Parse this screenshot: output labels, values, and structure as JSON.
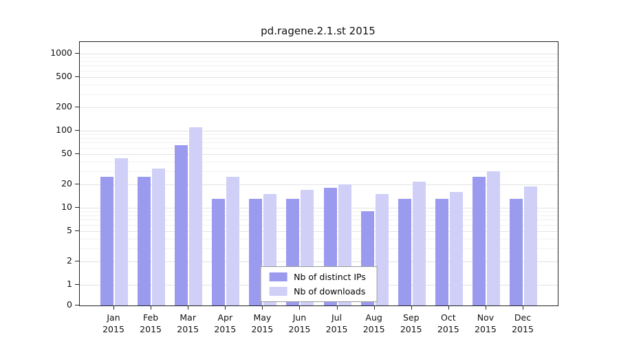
{
  "title": "pd.ragene.2.1.st 2015",
  "chart_data": {
    "type": "bar",
    "title": "pd.ragene.2.1.st 2015",
    "categories": [
      "Jan",
      "Feb",
      "Mar",
      "Apr",
      "May",
      "Jun",
      "Jul",
      "Aug",
      "Sep",
      "Oct",
      "Nov",
      "Dec"
    ],
    "year": "2015",
    "series": [
      {
        "name": "Nb of distinct IPs",
        "color": "#9a9aee",
        "values": [
          25,
          25,
          65,
          13,
          13,
          13,
          18,
          9,
          13,
          13,
          25,
          13
        ]
      },
      {
        "name": "Nb of downloads",
        "color": "#cfcff8",
        "values": [
          44,
          32,
          110,
          25,
          15,
          17,
          20,
          15,
          22,
          16,
          30,
          19
        ]
      }
    ],
    "yticks": [
      0,
      1,
      2,
      5,
      10,
      20,
      50,
      100,
      200,
      500,
      1000
    ],
    "yscale": "log-with-zero-baseline",
    "ylim": [
      0,
      1000
    ],
    "grid": true,
    "legend_position": "bottom-center"
  }
}
